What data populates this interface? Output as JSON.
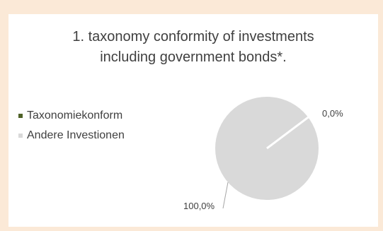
{
  "chart_data": {
    "type": "pie",
    "title": [
      "1. taxonomy conformity of investments",
      "including government bonds*."
    ],
    "slices": [
      {
        "name": "Taxonomiekonform",
        "value": 0.0,
        "label": "0,0%",
        "color": "#4f6228"
      },
      {
        "name": "Andere Investionen",
        "value": 100.0,
        "label": "100,0%",
        "color": "#d9d9d9"
      }
    ],
    "legend_position": "left"
  }
}
